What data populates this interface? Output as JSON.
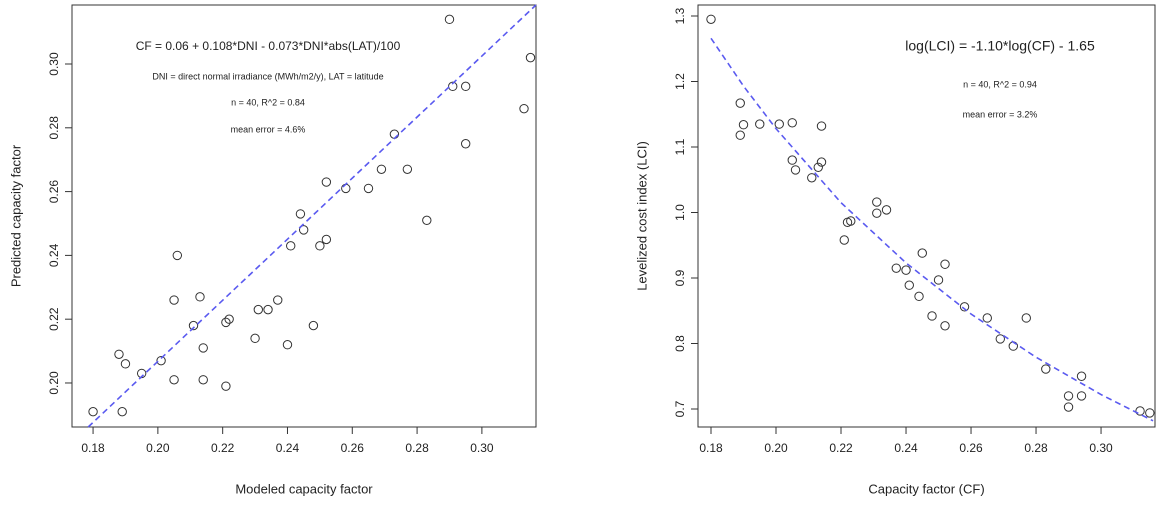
{
  "chart_data": [
    {
      "type": "scatter",
      "x_label": "Modeled capacity factor",
      "y_label": "Predicted capacity factor",
      "annotations": [
        "CF = 0.06 + 0.108*DNI - 0.073*DNI*abs(LAT)/100",
        "DNI = direct normal irradiance (MWh/m2/y), LAT = latitude",
        "n = 40, R^2 = 0.84",
        "mean error = 4.6%"
      ],
      "xlim": [
        0.1735,
        0.3167
      ],
      "ylim": [
        0.1862,
        0.3185
      ],
      "xticks": [
        0.18,
        {
          "value": 0.2,
          "label": "0.20"
        },
        0.22,
        0.24,
        0.26,
        0.28,
        {
          "value": 0.3,
          "label": "0.30"
        }
      ],
      "yticks": [
        {
          "value": 0.2,
          "label": "0.20"
        },
        0.22,
        0.24,
        0.26,
        0.28,
        {
          "value": 0.3,
          "label": "0.30"
        }
      ],
      "series": [
        {
          "color": "#333333",
          "x": [
            0.18,
            0.188,
            0.19,
            0.189,
            0.195,
            0.201,
            0.205,
            0.205,
            0.206,
            0.211,
            0.213,
            0.214,
            0.214,
            0.221,
            0.221,
            0.222,
            0.23,
            0.231,
            0.234,
            0.237,
            0.24,
            0.241,
            0.244,
            0.245,
            0.248,
            0.25,
            0.252,
            0.252,
            0.258,
            0.265,
            0.269,
            0.273,
            0.277,
            0.283,
            0.29,
            0.291,
            0.295,
            0.295,
            0.313,
            0.315
          ],
          "y": [
            0.191,
            0.209,
            0.206,
            0.191,
            0.203,
            0.207,
            0.201,
            0.226,
            0.24,
            0.218,
            0.227,
            0.211,
            0.201,
            0.199,
            0.219,
            0.22,
            0.214,
            0.223,
            0.223,
            0.226,
            0.212,
            0.243,
            0.253,
            0.248,
            0.218,
            0.243,
            0.245,
            0.263,
            0.261,
            0.261,
            0.267,
            0.278,
            0.267,
            0.251,
            0.314,
            0.293,
            0.293,
            0.275,
            0.286,
            0.302
          ]
        }
      ],
      "fit_line": {
        "color": "#5a5af0",
        "x": [
          0.1785,
          0.3167
        ],
        "y": [
          0.1862,
          0.3185
        ]
      }
    },
    {
      "type": "scatter",
      "x_label": "Capacity factor (CF)",
      "y_label": "Levelized cost index (LCI)",
      "annotations": [
        "log(LCI) = -1.10*log(CF) - 1.65",
        "n = 40, R^2 = 0.94",
        "mean error = 3.2%"
      ],
      "xlim": [
        0.176,
        0.3166
      ],
      "ylim": [
        0.6725,
        1.3168
      ],
      "xticks": [
        0.18,
        {
          "value": 0.2,
          "label": "0.20"
        },
        0.22,
        0.24,
        0.26,
        0.28,
        {
          "value": 0.3,
          "label": "0.30"
        }
      ],
      "yticks": [
        0.7,
        0.8,
        0.9,
        {
          "value": 1.0,
          "label": "1.0"
        },
        1.1,
        1.2,
        1.3
      ],
      "series": [
        {
          "color": "#333333",
          "x": [
            0.18,
            0.189,
            0.189,
            0.19,
            0.195,
            0.201,
            0.205,
            0.205,
            0.206,
            0.211,
            0.213,
            0.214,
            0.214,
            0.221,
            0.222,
            0.223,
            0.231,
            0.231,
            0.234,
            0.237,
            0.24,
            0.241,
            0.244,
            0.245,
            0.248,
            0.25,
            0.252,
            0.252,
            0.258,
            0.265,
            0.269,
            0.273,
            0.277,
            0.283,
            0.29,
            0.29,
            0.294,
            0.294,
            0.312,
            0.315
          ],
          "y": [
            1.295,
            1.118,
            1.167,
            1.134,
            1.135,
            1.135,
            1.137,
            1.08,
            1.065,
            1.053,
            1.069,
            1.077,
            1.132,
            0.958,
            0.985,
            0.987,
            1.016,
            0.999,
            1.004,
            0.915,
            0.912,
            0.889,
            0.872,
            0.938,
            0.842,
            0.897,
            0.921,
            0.827,
            0.856,
            0.839,
            0.807,
            0.796,
            0.839,
            0.761,
            0.72,
            0.703,
            0.75,
            0.72,
            0.697,
            0.694
          ]
        }
      ],
      "fit_line": {
        "color": "#5a5af0",
        "x": [
          0.18,
          0.19,
          0.2,
          0.22,
          0.24,
          0.26,
          0.28,
          0.3,
          0.316
        ],
        "y": [
          1.266,
          1.193,
          1.128,
          1.015,
          0.923,
          0.845,
          0.779,
          0.722,
          0.682
        ]
      }
    }
  ]
}
